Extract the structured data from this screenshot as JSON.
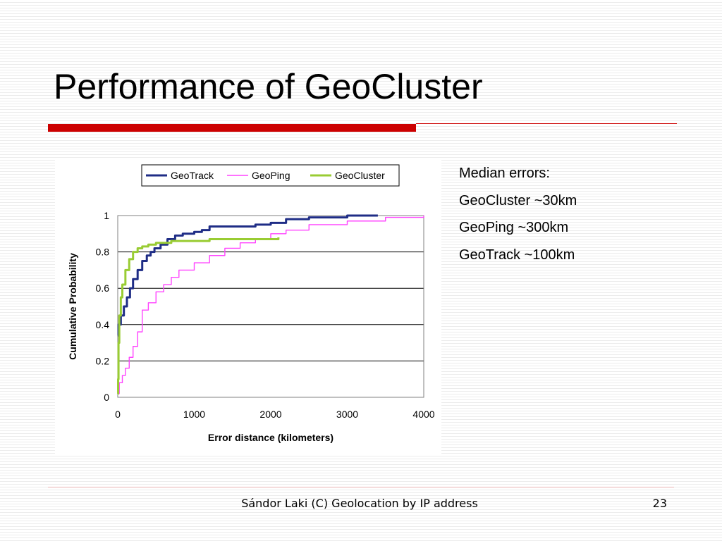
{
  "slide": {
    "title": "Performance of GeoCluster",
    "notes": [
      "Median errors:",
      "GeoCluster ~30km",
      "GeoPing ~300km",
      "GeoTrack ~100km"
    ],
    "footer": "Sándor Laki (C) Geolocation by IP address",
    "page_number": "23",
    "accent_color": "#cc0000"
  },
  "chart_data": {
    "type": "line",
    "xlabel": "Error distance (kilometers)",
    "ylabel": "Cumulative Probability",
    "xlim": [
      0,
      4000
    ],
    "ylim": [
      0,
      1
    ],
    "x_ticks": [
      "0",
      "1000",
      "2000",
      "3000",
      "4000"
    ],
    "y_ticks": [
      "0",
      "0.2",
      "0.4",
      "0.6",
      "0.8",
      "1"
    ],
    "grid": "horizontal",
    "legend_position": "top",
    "series": [
      {
        "name": "GeoTrack",
        "color": "#1f2d86",
        "points": [
          [
            0,
            0.34
          ],
          [
            10,
            0.4
          ],
          [
            40,
            0.45
          ],
          [
            80,
            0.5
          ],
          [
            120,
            0.55
          ],
          [
            160,
            0.6
          ],
          [
            200,
            0.65
          ],
          [
            260,
            0.7
          ],
          [
            320,
            0.75
          ],
          [
            380,
            0.78
          ],
          [
            430,
            0.8
          ],
          [
            480,
            0.82
          ],
          [
            560,
            0.84
          ],
          [
            650,
            0.87
          ],
          [
            750,
            0.89
          ],
          [
            850,
            0.9
          ],
          [
            1000,
            0.91
          ],
          [
            1100,
            0.92
          ],
          [
            1200,
            0.94
          ],
          [
            1500,
            0.94
          ],
          [
            1800,
            0.95
          ],
          [
            2000,
            0.96
          ],
          [
            2200,
            0.98
          ],
          [
            2500,
            0.99
          ],
          [
            3000,
            1.0
          ],
          [
            3400,
            1.0
          ]
        ]
      },
      {
        "name": "GeoPing",
        "color": "#ff44ff",
        "points": [
          [
            0,
            0.02
          ],
          [
            20,
            0.08
          ],
          [
            60,
            0.12
          ],
          [
            100,
            0.16
          ],
          [
            150,
            0.22
          ],
          [
            200,
            0.28
          ],
          [
            260,
            0.36
          ],
          [
            320,
            0.48
          ],
          [
            400,
            0.52
          ],
          [
            500,
            0.58
          ],
          [
            600,
            0.62
          ],
          [
            700,
            0.66
          ],
          [
            800,
            0.7
          ],
          [
            1000,
            0.74
          ],
          [
            1200,
            0.78
          ],
          [
            1400,
            0.82
          ],
          [
            1600,
            0.85
          ],
          [
            1800,
            0.87
          ],
          [
            2000,
            0.9
          ],
          [
            2200,
            0.92
          ],
          [
            2500,
            0.95
          ],
          [
            3000,
            0.97
          ],
          [
            3500,
            0.99
          ],
          [
            4000,
            1.0
          ]
        ]
      },
      {
        "name": "GeoCluster",
        "color": "#99cc33",
        "points": [
          [
            0,
            0.02
          ],
          [
            5,
            0.1
          ],
          [
            10,
            0.3
          ],
          [
            20,
            0.45
          ],
          [
            40,
            0.55
          ],
          [
            60,
            0.62
          ],
          [
            100,
            0.7
          ],
          [
            150,
            0.76
          ],
          [
            200,
            0.8
          ],
          [
            260,
            0.82
          ],
          [
            320,
            0.83
          ],
          [
            400,
            0.84
          ],
          [
            500,
            0.85
          ],
          [
            700,
            0.86
          ],
          [
            1000,
            0.86
          ],
          [
            1200,
            0.87
          ],
          [
            1500,
            0.87
          ],
          [
            1800,
            0.87
          ],
          [
            2100,
            0.88
          ]
        ]
      }
    ]
  }
}
